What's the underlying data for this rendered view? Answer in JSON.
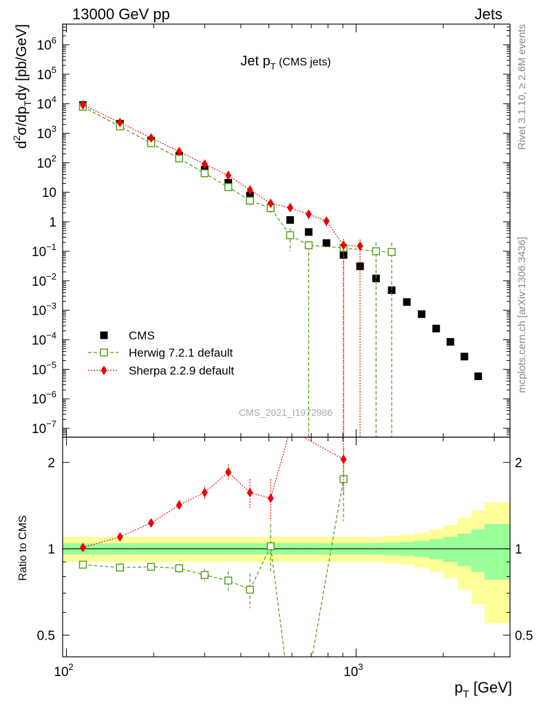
{
  "header": {
    "left": "13000 GeV pp",
    "right": "Jets"
  },
  "side_text": {
    "rivet": "Rivet 3.1.10, ≥ 2.6M events",
    "mcplots": "mcplots.cern.ch [arXiv:1306.3436]"
  },
  "chart_data": [
    {
      "panel": "main",
      "type": "scatter",
      "title": "Jet p_T (CMS jets)",
      "title_main": "Jet p",
      "title_sub": "T",
      "title_extra": "(CMS jets)",
      "ylabel": "d²σ/dp_T dy [pb/GeV]",
      "ylabel_parts": [
        "d",
        "2",
        "σ/dp",
        "T",
        "dy [pb/GeV]"
      ],
      "yscale": "log",
      "xscale": "log",
      "xlim": [
        97,
        3400
      ],
      "ylim": [
        5e-08,
        5000000.0
      ],
      "yticks": [
        {
          "v": 1000000.0,
          "b": "10",
          "e": "6"
        },
        {
          "v": 100000.0,
          "b": "10",
          "e": "5"
        },
        {
          "v": 10000.0,
          "b": "10",
          "e": "4"
        },
        {
          "v": 1000.0,
          "b": "10",
          "e": "3"
        },
        {
          "v": 100.0,
          "b": "10",
          "e": "2"
        },
        {
          "v": 10,
          "b": "10",
          "e": ""
        },
        {
          "v": 1,
          "b": "1",
          "e": ""
        },
        {
          "v": 0.1,
          "b": "10",
          "e": "−1"
        },
        {
          "v": 0.01,
          "b": "10",
          "e": "−2"
        },
        {
          "v": 0.001,
          "b": "10",
          "e": "−3"
        },
        {
          "v": 0.0001,
          "b": "10",
          "e": "−4"
        },
        {
          "v": 1e-05,
          "b": "10",
          "e": "−5"
        },
        {
          "v": 1e-06,
          "b": "10",
          "e": "−6"
        },
        {
          "v": 1e-07,
          "b": "10",
          "e": "−7"
        }
      ],
      "watermark": "CMS_2021_I1972986",
      "legend_position": "bottom-left",
      "series": [
        {
          "name": "CMS",
          "color": "#000000",
          "marker": "filled-square",
          "x": [
            114,
            153,
            196,
            245,
            300,
            362,
            430,
            507,
            592,
            686,
            790,
            905,
            1032,
            1172,
            1327,
            1497,
            1684,
            1890,
            2116,
            2366,
            2640
          ],
          "y": [
            9000,
            2100,
            560,
            170,
            58,
            21,
            7.8,
            3.0,
            1.15,
            0.45,
            0.19,
            0.075,
            0.031,
            0.012,
            0.0048,
            0.0019,
            0.00074,
            0.00024,
            8.5e-05,
            2.7e-05,
            5.8e-06
          ]
        },
        {
          "name": "Herwig 7.2.1 default",
          "color": "#4a9a10",
          "marker": "open-square",
          "line": "dashed",
          "x": [
            114,
            153,
            196,
            245,
            300,
            362,
            430,
            507,
            592,
            686,
            905,
            1172,
            1327
          ],
          "y": [
            7900,
            1700,
            460,
            140,
            44,
            15,
            5.2,
            2.9,
            0.35,
            0.16,
            0.13,
            0.1,
            0.095
          ],
          "yerr_lo": [
            0,
            0,
            0,
            25,
            8,
            3,
            1.5,
            0.9,
            0.25,
            0.16,
            0.13,
            0.1,
            0.095
          ],
          "yerr_hi": [
            0,
            0,
            0,
            25,
            8,
            3,
            1.5,
            0.9,
            0.25,
            0.06,
            0.05,
            0.1,
            0.1
          ],
          "err_extends_below_axis": [
            false,
            false,
            false,
            false,
            false,
            false,
            false,
            false,
            false,
            true,
            true,
            true,
            true
          ]
        },
        {
          "name": "Sherpa 2.2.9 default",
          "color": "#ee0000",
          "marker": "filled-diamond",
          "line": "dotted",
          "x": [
            114,
            153,
            196,
            245,
            300,
            362,
            430,
            507,
            592,
            686,
            790,
            905,
            1032
          ],
          "y": [
            9100,
            2300,
            690,
            240,
            90,
            37,
            12,
            4.2,
            3.0,
            1.8,
            1.05,
            0.16,
            0.15
          ],
          "yerr_lo": [
            0,
            0,
            0,
            30,
            15,
            8,
            3,
            1.2,
            0.8,
            0.6,
            0.4,
            0.16,
            0.15
          ],
          "yerr_hi": [
            0,
            0,
            0,
            30,
            15,
            8,
            3,
            1.2,
            0.8,
            0.6,
            0.4,
            0.1,
            0.1
          ],
          "err_extends_below_axis": [
            false,
            false,
            false,
            false,
            false,
            false,
            false,
            false,
            false,
            false,
            false,
            true,
            true
          ]
        }
      ]
    },
    {
      "panel": "ratio",
      "type": "line",
      "ylabel": "Ratio to CMS",
      "xlabel": "p_T [GeV]",
      "xlabel_parts": [
        "p",
        "T",
        " [GeV]"
      ],
      "xscale": "log",
      "yscale": "log",
      "xlim": [
        97,
        3400
      ],
      "ylim": [
        0.42,
        2.45
      ],
      "yticks": [
        {
          "v": 2,
          "label": "2"
        },
        {
          "v": 1,
          "label": "1"
        },
        {
          "v": 0.5,
          "label": "0.5"
        }
      ],
      "xticks": [
        {
          "v": 100,
          "b": "10",
          "e": "2"
        },
        {
          "v": 1000,
          "b": "10",
          "e": "3"
        }
      ],
      "reference": 1,
      "band_inner_color": "#99ff99",
      "band_outer_color": "#ffff99",
      "band_edges": [
        97,
        132,
        173,
        220,
        272,
        331,
        396,
        468,
        548,
        638,
        737,
        846,
        967,
        1101,
        1248,
        1410,
        1588,
        1784,
        1999,
        2238,
        2500,
        2780,
        3400
      ],
      "band_inner": [
        0.045,
        0.045,
        0.045,
        0.045,
        0.045,
        0.045,
        0.045,
        0.045,
        0.045,
        0.045,
        0.045,
        0.045,
        0.045,
        0.047,
        0.05,
        0.055,
        0.065,
        0.08,
        0.1,
        0.13,
        0.17,
        0.22
      ],
      "band_outer": [
        0.1,
        0.1,
        0.1,
        0.1,
        0.1,
        0.1,
        0.1,
        0.1,
        0.1,
        0.1,
        0.1,
        0.1,
        0.1,
        0.1,
        0.11,
        0.12,
        0.14,
        0.17,
        0.21,
        0.28,
        0.36,
        0.45
      ],
      "series": [
        {
          "name": "Herwig 7.2.1 default",
          "color": "#4a9a10",
          "marker": "open-square",
          "line": "dashed",
          "x": [
            114,
            153,
            196,
            245,
            300,
            362,
            430,
            507,
            592,
            686,
            905
          ],
          "y": [
            0.88,
            0.86,
            0.865,
            0.855,
            0.81,
            0.775,
            0.72,
            1.02,
            0.3,
            0.36,
            1.75
          ],
          "yerr": [
            0,
            0,
            0.015,
            0.03,
            0.04,
            0.06,
            0.1,
            0.2,
            0,
            0,
            0.5
          ]
        },
        {
          "name": "Sherpa 2.2.9 default",
          "color": "#ee0000",
          "marker": "filled-diamond",
          "line": "dotted",
          "x": [
            114,
            153,
            196,
            245,
            300,
            362,
            430,
            507,
            592,
            905
          ],
          "y": [
            1.01,
            1.1,
            1.23,
            1.42,
            1.57,
            1.85,
            1.57,
            1.5,
            2.6,
            2.05
          ],
          "yerr": [
            0,
            0,
            0.03,
            0.06,
            0.08,
            0.12,
            0.18,
            0.25,
            0,
            0.5
          ]
        }
      ]
    }
  ]
}
